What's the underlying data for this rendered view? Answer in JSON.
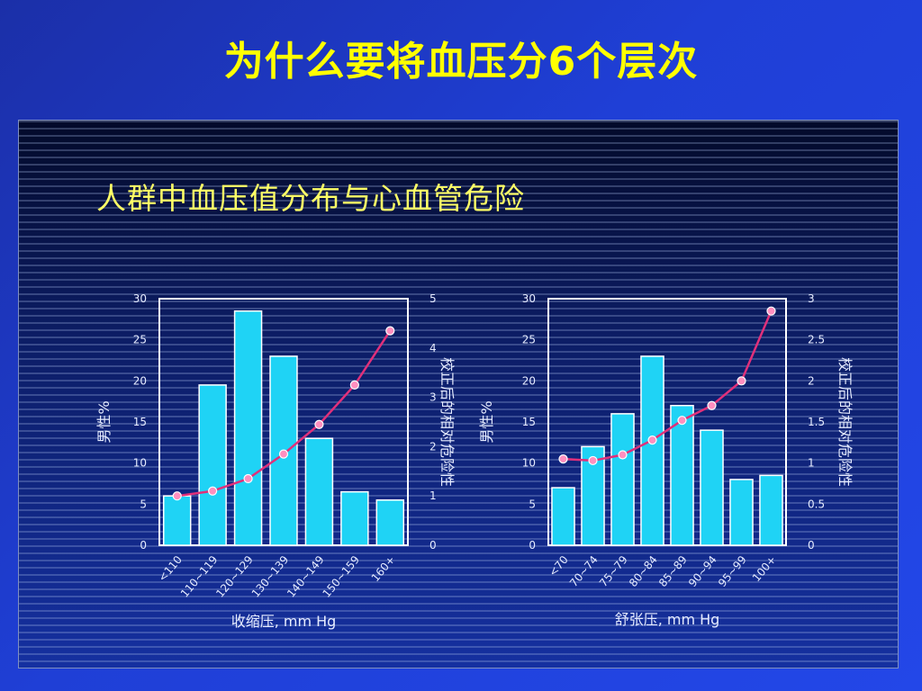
{
  "slide": {
    "title": "为什么要将血压分6个层次"
  },
  "figure": {
    "title": "人群中血压值分布与心血管危险"
  },
  "colors": {
    "bar": "#1fd3f5",
    "line": "#e0307a",
    "marker": "#ff8fbf",
    "text": "#e6ecff"
  },
  "chart_data": [
    {
      "type": "bar",
      "categories": [
        "<110",
        "110~119",
        "120~129",
        "130~139",
        "140~149",
        "150~159",
        "160+"
      ],
      "series": [
        {
          "name": "男性%",
          "axis": "left",
          "type": "bar",
          "values": [
            6,
            19.5,
            28.5,
            23,
            13,
            6.5,
            5.5
          ]
        },
        {
          "name": "校正后的相对危险性",
          "axis": "right",
          "type": "line",
          "values": [
            1.0,
            1.1,
            1.35,
            1.85,
            2.45,
            3.25,
            4.35
          ]
        }
      ],
      "xlabel": "收缩压, mm Hg",
      "ylabel": "男性%",
      "y2label": "校正后的相对危险性",
      "ylim": [
        0,
        30
      ],
      "y2lim": [
        0,
        5
      ],
      "yticks": [
        0,
        5,
        10,
        15,
        20,
        25,
        30
      ],
      "y2ticks": [
        0,
        1,
        2,
        3,
        4,
        5
      ]
    },
    {
      "type": "bar",
      "categories": [
        "<70",
        "70~74",
        "75~79",
        "80~84",
        "85~89",
        "90~94",
        "95~99",
        "100+"
      ],
      "series": [
        {
          "name": "男性%",
          "axis": "left",
          "type": "bar",
          "values": [
            7,
            12,
            16,
            23,
            17,
            14,
            8,
            8.5
          ]
        },
        {
          "name": "校正后的相对危险性",
          "axis": "right",
          "type": "line",
          "values": [
            1.05,
            1.03,
            1.1,
            1.28,
            1.52,
            1.7,
            2.0,
            2.85
          ]
        }
      ],
      "xlabel": "舒张压, mm Hg",
      "ylabel": "男性%",
      "y2label": "校正后的相对危险性",
      "ylim": [
        0,
        30
      ],
      "y2lim": [
        0,
        3
      ],
      "yticks": [
        0,
        5,
        10,
        15,
        20,
        25,
        30
      ],
      "y2ticks": [
        0,
        0.5,
        1,
        1.5,
        2,
        2.5,
        3
      ]
    }
  ]
}
